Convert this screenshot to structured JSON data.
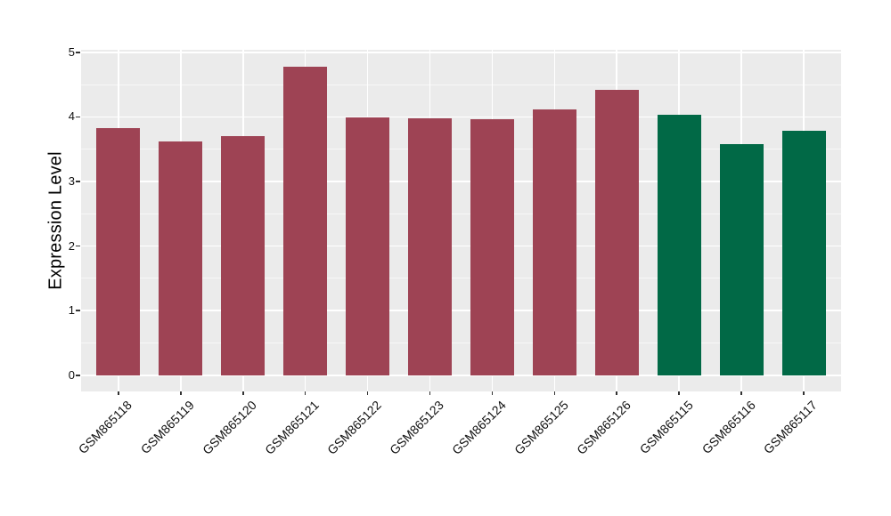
{
  "page": {
    "background": "#ffffff"
  },
  "chart_data": {
    "type": "bar",
    "ylabel": "Expression Level",
    "xlabel": "",
    "categories": [
      "GSM865118",
      "GSM865119",
      "GSM865120",
      "GSM865121",
      "GSM865122",
      "GSM865123",
      "GSM865124",
      "GSM865125",
      "GSM865126",
      "GSM865115",
      "GSM865116",
      "GSM865117"
    ],
    "values": [
      3.83,
      3.62,
      3.71,
      4.78,
      3.99,
      3.98,
      3.97,
      4.12,
      4.42,
      4.03,
      3.58,
      3.78
    ],
    "bar_colors": [
      "#9e4354",
      "#9e4354",
      "#9e4354",
      "#9e4354",
      "#9e4354",
      "#9e4354",
      "#9e4354",
      "#9e4354",
      "#9e4354",
      "#016946",
      "#016946",
      "#016946"
    ],
    "palette": {
      "maroon": "#9e4354",
      "green": "#016946"
    },
    "yticks": [
      0,
      1,
      2,
      3,
      4,
      5
    ],
    "yticks_minor": [
      0.5,
      1.5,
      2.5,
      3.5,
      4.5
    ],
    "ylim": [
      0,
      5
    ],
    "ylim_panel": [
      -0.25,
      5.04
    ],
    "grid": true,
    "legend": "none",
    "panel_bg": "#ebebeb",
    "gridline_color": "#ffffff",
    "bar_width_ratio": 0.7
  }
}
